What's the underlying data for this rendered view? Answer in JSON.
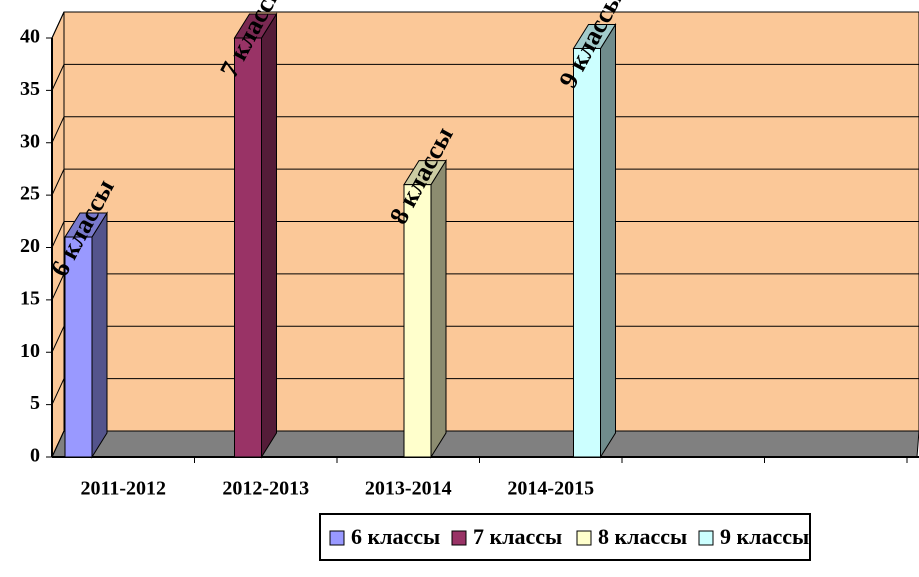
{
  "chart_data": {
    "type": "bar3d",
    "categories": [
      "2011-2012",
      "2012-2013",
      "2013-2014",
      "2014-2015",
      null,
      null
    ],
    "series": [
      {
        "name": "6 классы",
        "color": "#9999ff",
        "values": [
          21,
          null,
          null,
          null,
          null,
          null
        ]
      },
      {
        "name": "7 классы",
        "color": "#993366",
        "values": [
          null,
          40,
          null,
          null,
          null,
          null
        ]
      },
      {
        "name": "8 классы",
        "color": "#ffffcc",
        "values": [
          null,
          null,
          26,
          null,
          null,
          null
        ]
      },
      {
        "name": "9 классы",
        "color": "#ccffff",
        "values": [
          null,
          null,
          null,
          39,
          null,
          null
        ]
      }
    ],
    "ylim": [
      0,
      40
    ],
    "yticks": [
      0,
      5,
      10,
      15,
      20,
      25,
      30,
      35,
      40
    ],
    "grid": true,
    "wall_color": "#fbc898",
    "floor_color": "#808080",
    "legend": "bottom"
  }
}
